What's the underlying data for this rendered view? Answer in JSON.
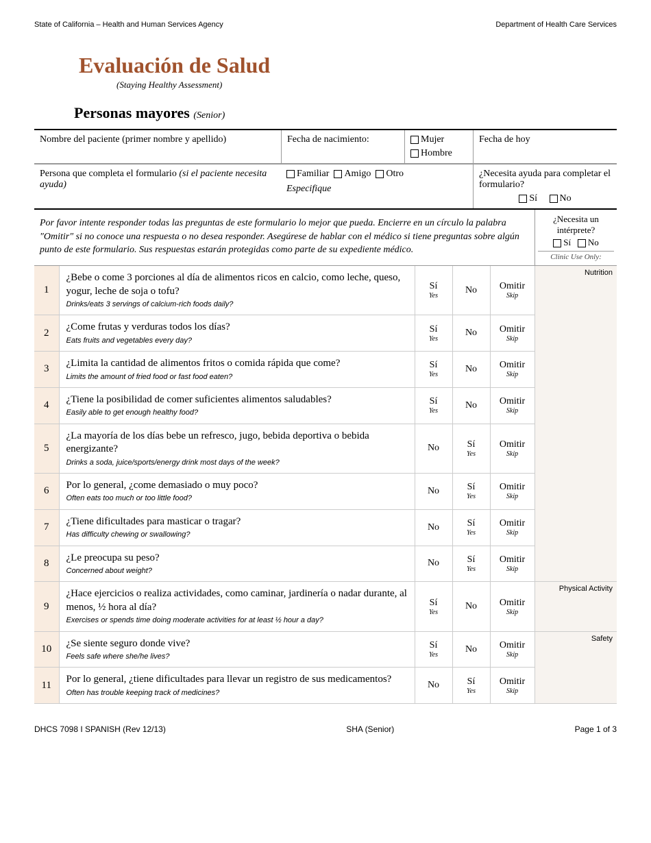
{
  "header": {
    "left": "State of California – Health and Human Services Agency",
    "right": "Department of Health Care Services"
  },
  "title": {
    "main": "Evaluación de Salud",
    "sub": "(Staying Healthy Assessment)",
    "section": "Personas mayores",
    "section_sub": "(Senior)"
  },
  "patient_row": {
    "name_label": "Nombre del paciente (primer nombre y apellido)",
    "dob_label": "Fecha de nacimiento:",
    "gender_f": "Mujer",
    "gender_m": "Hombre",
    "today_label": "Fecha de hoy"
  },
  "helper_row": {
    "label": "Persona que completa el formulario",
    "label_paren": "(si el paciente necesita ayuda)",
    "opt_familiar": "Familiar",
    "opt_amigo": "Amigo",
    "opt_otro": "Otro",
    "especifique": "Especifique",
    "need_help": "¿Necesita ayuda para completar el formulario?",
    "si": "Sí",
    "no": "No"
  },
  "instructions": "Por favor intente responder todas las  preguntas de este formulario lo mejor que pueda. Encierre en un círculo la palabra \"Omitir\" si no conoce una respuesta o no desea responder. Asegúrese de hablar con el médico si tiene preguntas sobre algún punto de este formulario. Sus respuestas estarán protegidas como parte de su expediente médico.",
  "interpreter": {
    "q": "¿Necesita un intérprete?",
    "si": "Sí",
    "no": "No",
    "clinic_use": "Clinic Use Only:"
  },
  "answers": {
    "si": "Sí",
    "si_sub": "Yes",
    "no": "No",
    "skip": "Omitir",
    "skip_sub": "Skip"
  },
  "categories": {
    "nutrition": "Nutrition",
    "physical": "Physical Activity",
    "safety": "Safety"
  },
  "questions": [
    {
      "n": "1",
      "es": "¿Bebe o come 3 porciones al día de alimentos ricos en calcio, como leche, queso, yogur, leche de soja o tofu?",
      "en": "Drinks/eats 3 servings of calcium-rich foods daily?",
      "flip": false,
      "cat": "nutrition",
      "rowspan": 8
    },
    {
      "n": "2",
      "es": "¿Come frutas y verduras todos los días?",
      "en": "Eats fruits and vegetables every day?",
      "flip": false
    },
    {
      "n": "3",
      "es": "¿Limita la cantidad de alimentos fritos o comida rápida que come?",
      "en": "Limits the amount of fried food or fast food eaten?",
      "flip": false
    },
    {
      "n": "4",
      "es": "¿Tiene la posibilidad de comer suficientes alimentos saludables?",
      "en": "Easily able to get enough healthy food?",
      "flip": false
    },
    {
      "n": "5",
      "es": "¿La mayoría de los días bebe un refresco, jugo, bebida deportiva o bebida energizante?",
      "en": "Drinks a soda, juice/sports/energy drink most days of the week?",
      "flip": true
    },
    {
      "n": "6",
      "es": "Por lo general, ¿come demasiado o muy poco?",
      "en": "Often eats too much or too little food?",
      "flip": true
    },
    {
      "n": "7",
      "es": "¿Tiene dificultades para masticar o tragar?",
      "en": "Has difficulty chewing or swallowing?",
      "flip": true
    },
    {
      "n": "8",
      "es": "¿Le preocupa su peso?",
      "en": "Concerned about weight?",
      "flip": true
    },
    {
      "n": "9",
      "es": "¿Hace ejercicios o realiza actividades, como caminar, jardinería o nadar durante, al menos, ½ hora al día?",
      "en": "Exercises or spends time doing moderate activities for at least ½ hour a day?",
      "flip": false,
      "cat": "physical",
      "rowspan": 1
    },
    {
      "n": "10",
      "es": "¿Se siente seguro donde vive?",
      "en": "Feels safe where she/he lives?",
      "flip": false,
      "cat": "safety",
      "rowspan": 2
    },
    {
      "n": "11",
      "es": "Por lo general, ¿tiene dificultades para llevar un registro de sus medicamentos?",
      "en": "Often has trouble keeping track of medicines?",
      "flip": true
    }
  ],
  "footer": {
    "left": "DHCS 7098 I SPANISH (Rev 12/13)",
    "center": "SHA (Senior)",
    "right": "Page 1 of 3"
  },
  "colors": {
    "title_color": "#a0522d",
    "num_bg": "#f9ece0",
    "clinic_bg": "#f7f3ef"
  }
}
